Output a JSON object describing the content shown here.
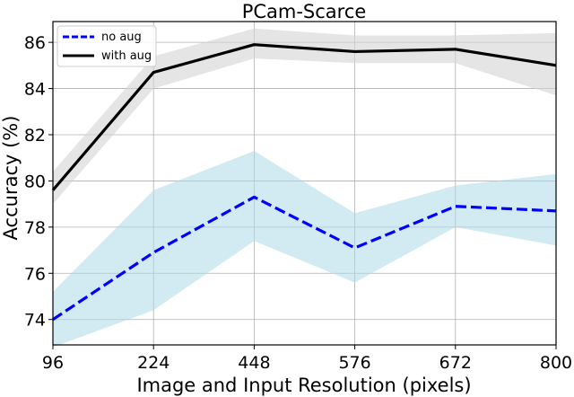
{
  "chart_data": {
    "type": "line",
    "title": "PCam-Scarce",
    "xlabel": "Image and Input Resolution (pixels)",
    "ylabel": "Accuracy (%)",
    "categories": [
      "96",
      "224",
      "448",
      "576",
      "672",
      "800"
    ],
    "ylim": [
      72.9,
      86.9
    ],
    "yticks": [
      74,
      76,
      78,
      80,
      82,
      84,
      86
    ],
    "grid": true,
    "legend_position": "top-left",
    "series": [
      {
        "name": "no aug",
        "color": "#0000ff",
        "band_color": "#add8e6",
        "style": "dashed",
        "values": [
          74.0,
          76.9,
          79.3,
          77.1,
          78.9,
          78.7
        ],
        "lower": [
          72.8,
          74.4,
          77.4,
          75.6,
          78.0,
          77.2
        ],
        "upper": [
          75.2,
          79.6,
          81.3,
          78.6,
          79.8,
          80.3
        ]
      },
      {
        "name": "with aug",
        "color": "#000000",
        "band_color": "#d3d3d3",
        "style": "solid",
        "values": [
          79.6,
          84.7,
          85.9,
          85.6,
          85.7,
          85.0
        ],
        "lower": [
          79.0,
          84.0,
          85.3,
          85.1,
          85.1,
          83.7
        ],
        "upper": [
          80.4,
          85.4,
          86.6,
          86.3,
          86.3,
          86.4
        ]
      }
    ]
  }
}
